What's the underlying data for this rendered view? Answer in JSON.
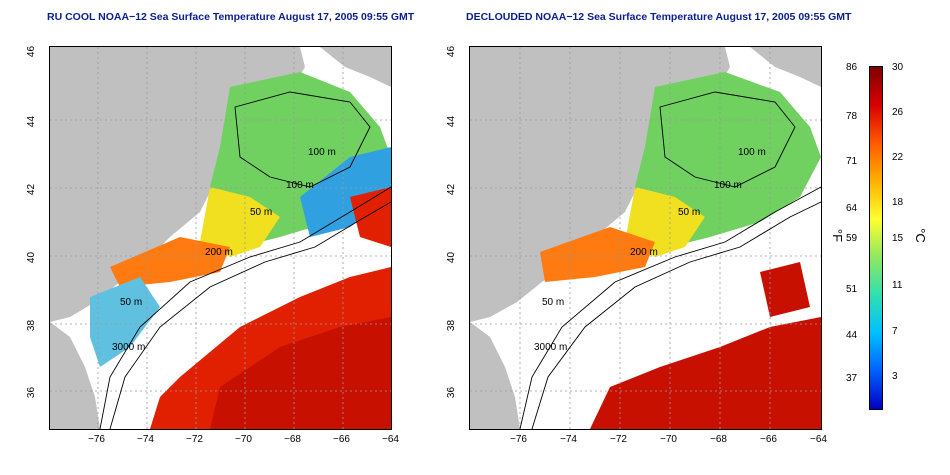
{
  "panels": [
    {
      "id": "ru-cool",
      "title": "RU COOL NOAA−12 Sea Surface Temperature August 17, 2005 09:55 GMT",
      "cloud_masked": false
    },
    {
      "id": "declouded",
      "title": "DECLOUDED NOAA−12 Sea Surface Temperature August 17, 2005 09:55 GMT",
      "cloud_masked": true
    }
  ],
  "axes": {
    "x_ticks": [
      "−76",
      "−74",
      "−72",
      "−70",
      "−68",
      "−66",
      "−64"
    ],
    "y_ticks": [
      "36",
      "38",
      "40",
      "42",
      "44",
      "46"
    ]
  },
  "contour_labels": {
    "ru_cool": [
      "100 m",
      "100 m",
      "50 m",
      "200 m",
      "50 m",
      "3000 m"
    ],
    "declouded": [
      "100 m",
      "100 m",
      "50 m",
      "200 m",
      "50 m",
      "3000 m"
    ]
  },
  "colorbar": {
    "fahrenheit_labels": [
      "86",
      "78",
      "71",
      "64",
      "59",
      "51",
      "44",
      "37"
    ],
    "celsius_labels": [
      "30",
      "26",
      "22",
      "18",
      "15",
      "11",
      "7",
      "3"
    ],
    "unit_f": "°F",
    "unit_c": "°C",
    "colors": [
      "#7f0000",
      "#d90000",
      "#ff5a00",
      "#ffb000",
      "#ffff30",
      "#90e860",
      "#30e0b0",
      "#00c0ff",
      "#0060ff",
      "#0000c0"
    ]
  },
  "colors": {
    "land": "#c0c0c0",
    "ocean_clear_warm": "#e02000",
    "shelf_cool": "#70d060",
    "grid": "#9a9a9a",
    "contour": "#000000",
    "title": "#0a1f8f"
  }
}
